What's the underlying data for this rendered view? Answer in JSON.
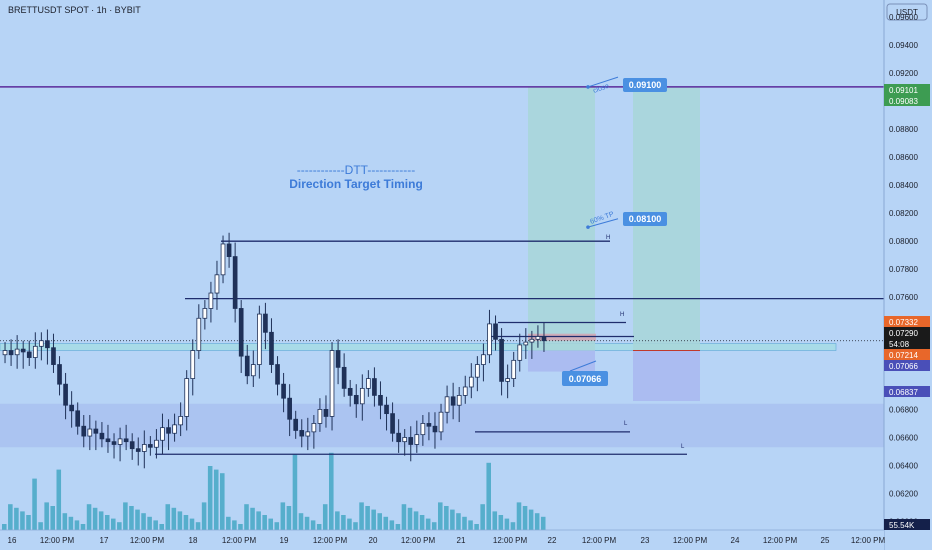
{
  "header": {
    "symbol": "BRETTUSDT SPOT · 1h · BYBIT",
    "currency": "USDT"
  },
  "annotations": {
    "title_line": "------------DTT------------",
    "subtitle": "Direction Target Timing",
    "close_label": "close",
    "tp_label": "60% TP",
    "target_close": "0.09100",
    "target_tp": "0.08100",
    "stop": "0.07066",
    "level_markers": [
      "H",
      "H",
      "L",
      "L"
    ]
  },
  "price_badges": [
    {
      "text": "0.09101",
      "color": "#3d9c52"
    },
    {
      "text": "0.09083",
      "color": "#3d9c52"
    },
    {
      "text": "0.07332",
      "color": "#e8672a"
    },
    {
      "text": "0.07290",
      "color": "#1a1a1a"
    },
    {
      "text": "54:08",
      "color": "#1a1a1a"
    },
    {
      "text": "0.07214",
      "color": "#e8672a"
    },
    {
      "text": "0.07066",
      "color": "#4a4fb8"
    },
    {
      "text": "0.06837",
      "color": "#4a4fb8"
    },
    {
      "text": "55.54K",
      "color": "#14204a"
    }
  ],
  "colors": {
    "background": "#b7d4f6",
    "candle": "#1f3158",
    "level_line": "#1f2d6d",
    "close_line": "#5b2a9a",
    "target_zone": "#a8d6d8",
    "stop_zone": "#a9b7f0",
    "volume": "#45a7c4",
    "badge_blue": "#4a90e2"
  },
  "chart_data": {
    "type": "candlestick",
    "y_axis": {
      "min": 0.0594,
      "max": 0.0972,
      "ticks": [
        "0.09600",
        "0.09400",
        "0.09200",
        "0.09000",
        "0.08800",
        "0.08600",
        "0.08400",
        "0.08200",
        "0.08000",
        "0.07800",
        "0.07600",
        "0.07400",
        "0.06800",
        "0.06600",
        "0.06400",
        "0.06200",
        "0.06000"
      ]
    },
    "x_axis": {
      "labels": [
        "16",
        "12:00 PM",
        "17",
        "12:00 PM",
        "18",
        "12:00 PM",
        "19",
        "12:00 PM",
        "20",
        "12:00 PM",
        "21",
        "12:00 PM",
        "22",
        "12:00 PM",
        "23",
        "12:00 PM",
        "24",
        "12:00 PM",
        "25",
        "12:00 PM"
      ]
    },
    "candles_close": [
      0.0722,
      0.0719,
      0.0723,
      0.0721,
      0.0717,
      0.0725,
      0.0729,
      0.0724,
      0.0712,
      0.0698,
      0.0683,
      0.0679,
      0.0668,
      0.0661,
      0.0666,
      0.0663,
      0.0659,
      0.0657,
      0.0655,
      0.0659,
      0.0657,
      0.0652,
      0.065,
      0.0655,
      0.0653,
      0.0658,
      0.0667,
      0.0663,
      0.0669,
      0.0675,
      0.0702,
      0.0722,
      0.0745,
      0.0752,
      0.0763,
      0.0776,
      0.0798,
      0.0789,
      0.0752,
      0.0718,
      0.0704,
      0.0712,
      0.0748,
      0.0735,
      0.0712,
      0.0698,
      0.0688,
      0.0673,
      0.0665,
      0.0661,
      0.0664,
      0.067,
      0.068,
      0.0675,
      0.0722,
      0.071,
      0.0695,
      0.069,
      0.0684,
      0.0695,
      0.0702,
      0.069,
      0.0683,
      0.0677,
      0.0663,
      0.0657,
      0.066,
      0.0655,
      0.0662,
      0.067,
      0.0668,
      0.0664,
      0.0678,
      0.0689,
      0.0683,
      0.069,
      0.0696,
      0.0703,
      0.0712,
      0.0719,
      0.0741,
      0.073,
      0.07,
      0.0702,
      0.0715,
      0.0726,
      0.0728,
      0.073,
      0.0732,
      0.0729
    ],
    "volume_peak_label": "55.54K",
    "levels": [
      {
        "name": "close",
        "price": 0.091
      },
      {
        "name": "H",
        "price": 0.08
      },
      {
        "name": "",
        "price": 0.0759
      },
      {
        "name": "H",
        "price": 0.0742
      },
      {
        "name": "",
        "price": 0.0732
      },
      {
        "name": "L",
        "price": 0.0664
      },
      {
        "name": "L",
        "price": 0.0648
      }
    ],
    "zones": [
      {
        "name": "target",
        "from": 0.0722,
        "to": 0.091
      },
      {
        "name": "stop",
        "from": 0.0707,
        "to": 0.0722
      },
      {
        "name": "support-zone",
        "from": 0.0653,
        "to": 0.0684
      }
    ],
    "title": "",
    "xlabel": "",
    "ylabel": ""
  }
}
